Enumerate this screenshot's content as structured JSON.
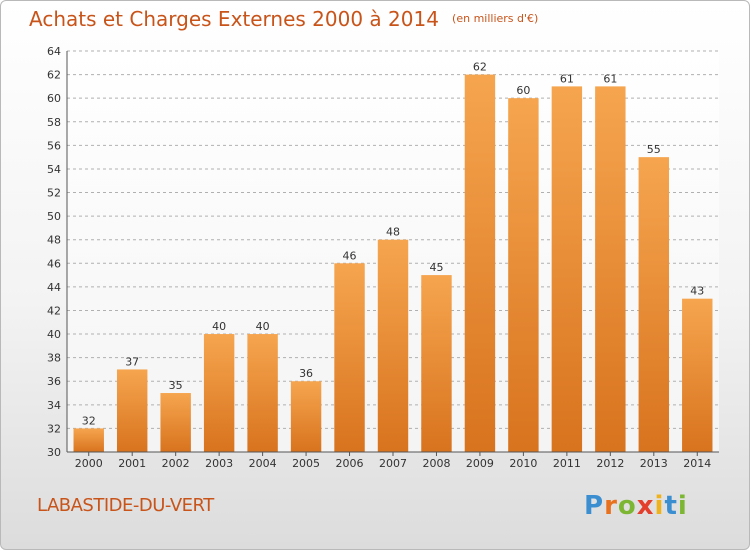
{
  "header": {
    "title": "Achats et Charges Externes 2000 à 2014",
    "unit": "(en milliers d'€)"
  },
  "footer": {
    "commune": "LABASTIDE-DU-VERT",
    "logo_letters": [
      "P",
      "r",
      "o",
      "x",
      "i",
      "t",
      "i"
    ],
    "logo_colors": [
      "#3b8fd1",
      "#e8711d",
      "#7cb633",
      "#e43f2c",
      "#f0b21b",
      "#3b8fd1",
      "#7cb633"
    ]
  },
  "colors": {
    "bar_light": "#f6a54f",
    "bar_dark": "#d8731e",
    "accent": "#c8541a",
    "grid": "#b0b0b0"
  },
  "chart_data": {
    "type": "bar",
    "title": "Achats et Charges Externes 2000 à 2014",
    "subtitle": "(en milliers d'€)",
    "categories": [
      "2000",
      "2001",
      "2002",
      "2003",
      "2004",
      "2005",
      "2006",
      "2007",
      "2008",
      "2009",
      "2010",
      "2011",
      "2012",
      "2013",
      "2014"
    ],
    "values": [
      32,
      37,
      35,
      40,
      40,
      36,
      46,
      48,
      45,
      62,
      60,
      61,
      61,
      55,
      43
    ],
    "ylim": [
      30,
      64
    ],
    "yticks": [
      30,
      32,
      34,
      36,
      38,
      40,
      42,
      44,
      46,
      48,
      50,
      52,
      54,
      56,
      58,
      60,
      62,
      64
    ],
    "grid": "horizontal dashed",
    "xlabel": "",
    "ylabel": ""
  }
}
